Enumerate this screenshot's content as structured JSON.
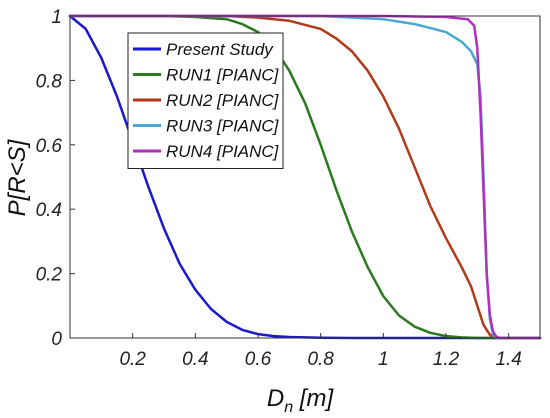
{
  "chart_data": {
    "type": "line",
    "xlim": [
      0,
      1.5
    ],
    "ylim": [
      0,
      1
    ],
    "x_ticks": [
      {
        "value": 0.2,
        "label": "0.2"
      },
      {
        "value": 0.4,
        "label": "0.4"
      },
      {
        "value": 0.6,
        "label": "0.6"
      },
      {
        "value": 0.8,
        "label": "0.8"
      },
      {
        "value": 1.0,
        "label": "1"
      },
      {
        "value": 1.2,
        "label": "1.2"
      },
      {
        "value": 1.4,
        "label": "1.4"
      }
    ],
    "y_ticks": [
      {
        "value": 0,
        "label": "0"
      },
      {
        "value": 0.2,
        "label": "0.2"
      },
      {
        "value": 0.4,
        "label": "0.4"
      },
      {
        "value": 0.6,
        "label": "0.6"
      },
      {
        "value": 0.8,
        "label": "0.8"
      },
      {
        "value": 1.0,
        "label": "1"
      }
    ],
    "xlabel_main": "D",
    "xlabel_sub": "n",
    "xlabel_unit": " [m]",
    "ylabel": "P[R<S]",
    "grid": false,
    "legend_position": "top-left",
    "series": [
      {
        "name": "Present Study",
        "color": "#1a1acc",
        "points": [
          [
            0,
            1
          ],
          [
            0.05,
            0.96
          ],
          [
            0.1,
            0.87
          ],
          [
            0.15,
            0.75
          ],
          [
            0.2,
            0.61
          ],
          [
            0.25,
            0.47
          ],
          [
            0.3,
            0.34
          ],
          [
            0.35,
            0.23
          ],
          [
            0.4,
            0.15
          ],
          [
            0.45,
            0.09
          ],
          [
            0.5,
            0.05
          ],
          [
            0.55,
            0.025
          ],
          [
            0.6,
            0.012
          ],
          [
            0.65,
            0.006
          ],
          [
            0.7,
            0.003
          ],
          [
            0.8,
            0.001
          ],
          [
            0.9,
            0
          ],
          [
            1.5,
            0
          ]
        ]
      },
      {
        "name": "RUN1 [PIANC]",
        "color": "#2a7a1e",
        "points": [
          [
            0,
            1
          ],
          [
            0.3,
            1
          ],
          [
            0.4,
            0.997
          ],
          [
            0.5,
            0.99
          ],
          [
            0.55,
            0.975
          ],
          [
            0.6,
            0.95
          ],
          [
            0.65,
            0.905
          ],
          [
            0.7,
            0.83
          ],
          [
            0.75,
            0.73
          ],
          [
            0.8,
            0.6
          ],
          [
            0.85,
            0.46
          ],
          [
            0.9,
            0.33
          ],
          [
            0.95,
            0.22
          ],
          [
            1.0,
            0.13
          ],
          [
            1.05,
            0.07
          ],
          [
            1.1,
            0.035
          ],
          [
            1.15,
            0.016
          ],
          [
            1.2,
            0.006
          ],
          [
            1.25,
            0.002
          ],
          [
            1.3,
            0
          ],
          [
            1.5,
            0
          ]
        ]
      },
      {
        "name": "RUN2 [PIANC]",
        "color": "#b03a1a",
        "points": [
          [
            0,
            1
          ],
          [
            0.5,
            1
          ],
          [
            0.6,
            0.995
          ],
          [
            0.7,
            0.985
          ],
          [
            0.8,
            0.96
          ],
          [
            0.85,
            0.93
          ],
          [
            0.9,
            0.89
          ],
          [
            0.95,
            0.83
          ],
          [
            1.0,
            0.75
          ],
          [
            1.05,
            0.65
          ],
          [
            1.1,
            0.53
          ],
          [
            1.15,
            0.41
          ],
          [
            1.2,
            0.31
          ],
          [
            1.25,
            0.22
          ],
          [
            1.28,
            0.16
          ],
          [
            1.3,
            0.1
          ],
          [
            1.32,
            0.04
          ],
          [
            1.34,
            0.01
          ],
          [
            1.36,
            0
          ],
          [
            1.5,
            0
          ]
        ]
      },
      {
        "name": "RUN3 [PIANC]",
        "color": "#4aa8d0",
        "points": [
          [
            0,
            1
          ],
          [
            0.8,
            1
          ],
          [
            1.0,
            0.99
          ],
          [
            1.1,
            0.975
          ],
          [
            1.2,
            0.95
          ],
          [
            1.25,
            0.92
          ],
          [
            1.28,
            0.89
          ],
          [
            1.3,
            0.85
          ],
          [
            1.31,
            0.75
          ],
          [
            1.32,
            0.5
          ],
          [
            1.33,
            0.2
          ],
          [
            1.34,
            0.06
          ],
          [
            1.35,
            0.01
          ],
          [
            1.36,
            0
          ],
          [
            1.5,
            0
          ]
        ]
      },
      {
        "name": "RUN4 [PIANC]",
        "color": "#b030c0",
        "points": [
          [
            0,
            1
          ],
          [
            1.0,
            1
          ],
          [
            1.2,
            0.997
          ],
          [
            1.27,
            0.99
          ],
          [
            1.29,
            0.97
          ],
          [
            1.3,
            0.9
          ],
          [
            1.31,
            0.7
          ],
          [
            1.32,
            0.45
          ],
          [
            1.33,
            0.2
          ],
          [
            1.34,
            0.07
          ],
          [
            1.35,
            0.02
          ],
          [
            1.36,
            0.005
          ],
          [
            1.37,
            0
          ],
          [
            1.5,
            0
          ]
        ]
      }
    ]
  }
}
